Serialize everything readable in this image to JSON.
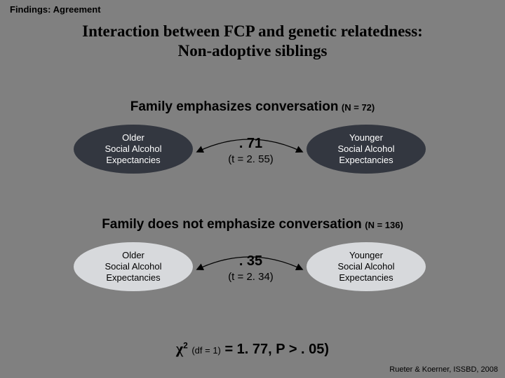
{
  "header_label": "Findings: Agreement",
  "title_line1": "Interaction between FCP and genetic relatedness:",
  "title_line2": "Non-adoptive siblings",
  "section1": {
    "heading_main": "Family emphasizes conversation",
    "heading_n": "(N = 72)",
    "left_node": "Older\nSocial Alcohol\nExpectancies",
    "right_node": "Younger\nSocial Alcohol\nExpectancies",
    "coef": ". 71",
    "tval": "(t = 2. 55)",
    "ellipse_bg": "#333740",
    "ellipse_fg": "#ffffff"
  },
  "section2": {
    "heading_main": "Family does not emphasize conversation",
    "heading_n": "(N = 136)",
    "left_node": "Older\nSocial Alcohol\nExpectancies",
    "right_node": "Younger\nSocial Alcohol\nExpectancies",
    "coef": ". 35",
    "tval": "(t = 2. 34)",
    "ellipse_bg": "#d7d9dc",
    "ellipse_fg": "#000000"
  },
  "chi": {
    "symbol": "χ",
    "sup": "2",
    "df": "(df = 1)",
    "rest": " = 1. 77, P > . 05)"
  },
  "citation": "Rueter & Koerner, ISSBD, 2008",
  "colors": {
    "background": "#808080",
    "text": "#000000"
  }
}
